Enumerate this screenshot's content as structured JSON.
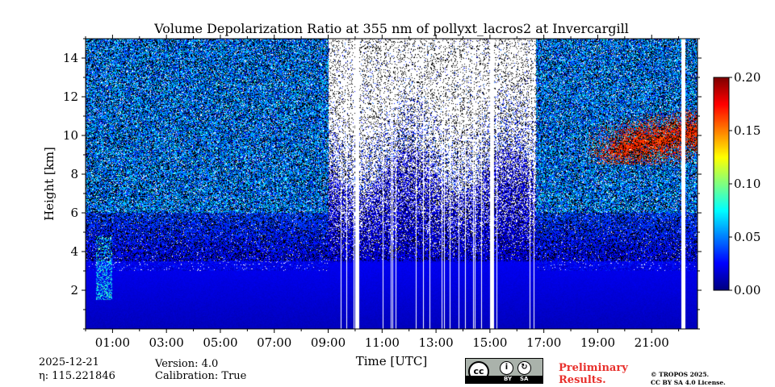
{
  "chart_data": {
    "type": "heatmap",
    "title": "Volume Depolarization Ratio at 355 nm of pollyxt_lacros2 at Invercargill",
    "xlabel": "Time [UTC]",
    "ylabel": "Height [km]",
    "xlim": [
      0.0,
      22.7
    ],
    "ylim": [
      0.0,
      15.0
    ],
    "x_ticks": [
      1,
      3,
      5,
      7,
      9,
      11,
      13,
      15,
      17,
      19,
      21
    ],
    "x_tick_labels": [
      "01:00",
      "03:00",
      "05:00",
      "07:00",
      "09:00",
      "11:00",
      "13:00",
      "15:00",
      "17:00",
      "19:00",
      "21:00"
    ],
    "y_ticks": [
      2,
      4,
      6,
      8,
      10,
      12,
      14
    ],
    "y_tick_labels": [
      "2",
      "4",
      "6",
      "8",
      "10",
      "12",
      14
    ],
    "colorbar": {
      "min": 0.0,
      "max": 0.2,
      "ticks": [
        0.0,
        0.05,
        0.1,
        0.15,
        0.2
      ],
      "tick_labels": [
        "0.00",
        "0.05",
        "0.10",
        "0.15",
        "0.20"
      ],
      "colormap": "jet"
    },
    "data_gaps_utc": [
      [
        10.0,
        10.15
      ],
      [
        15.0,
        15.15
      ],
      [
        22.1,
        22.25
      ]
    ],
    "cloud_feature": {
      "time_range_utc": [
        18.5,
        22.7
      ],
      "height_range_km": [
        8.5,
        11.5
      ],
      "value_range": [
        0.15,
        0.2
      ]
    }
  },
  "footer": {
    "date": "2025-12-21",
    "eta_line": "η: 115.221846",
    "version": "Version: 4.0",
    "calibration": "Calibration: True",
    "preliminary_line1": "Preliminary",
    "preliminary_line2": "Results.",
    "copyright_line1": "© TROPOS 2025.",
    "copyright_line2": "CC BY SA 4.0 License.",
    "license_badge": {
      "cc": "cc",
      "by": "BY",
      "sa": "SA"
    }
  },
  "colors": {
    "preliminary": "#e8302c",
    "badge_bg": "#aab2ab"
  }
}
